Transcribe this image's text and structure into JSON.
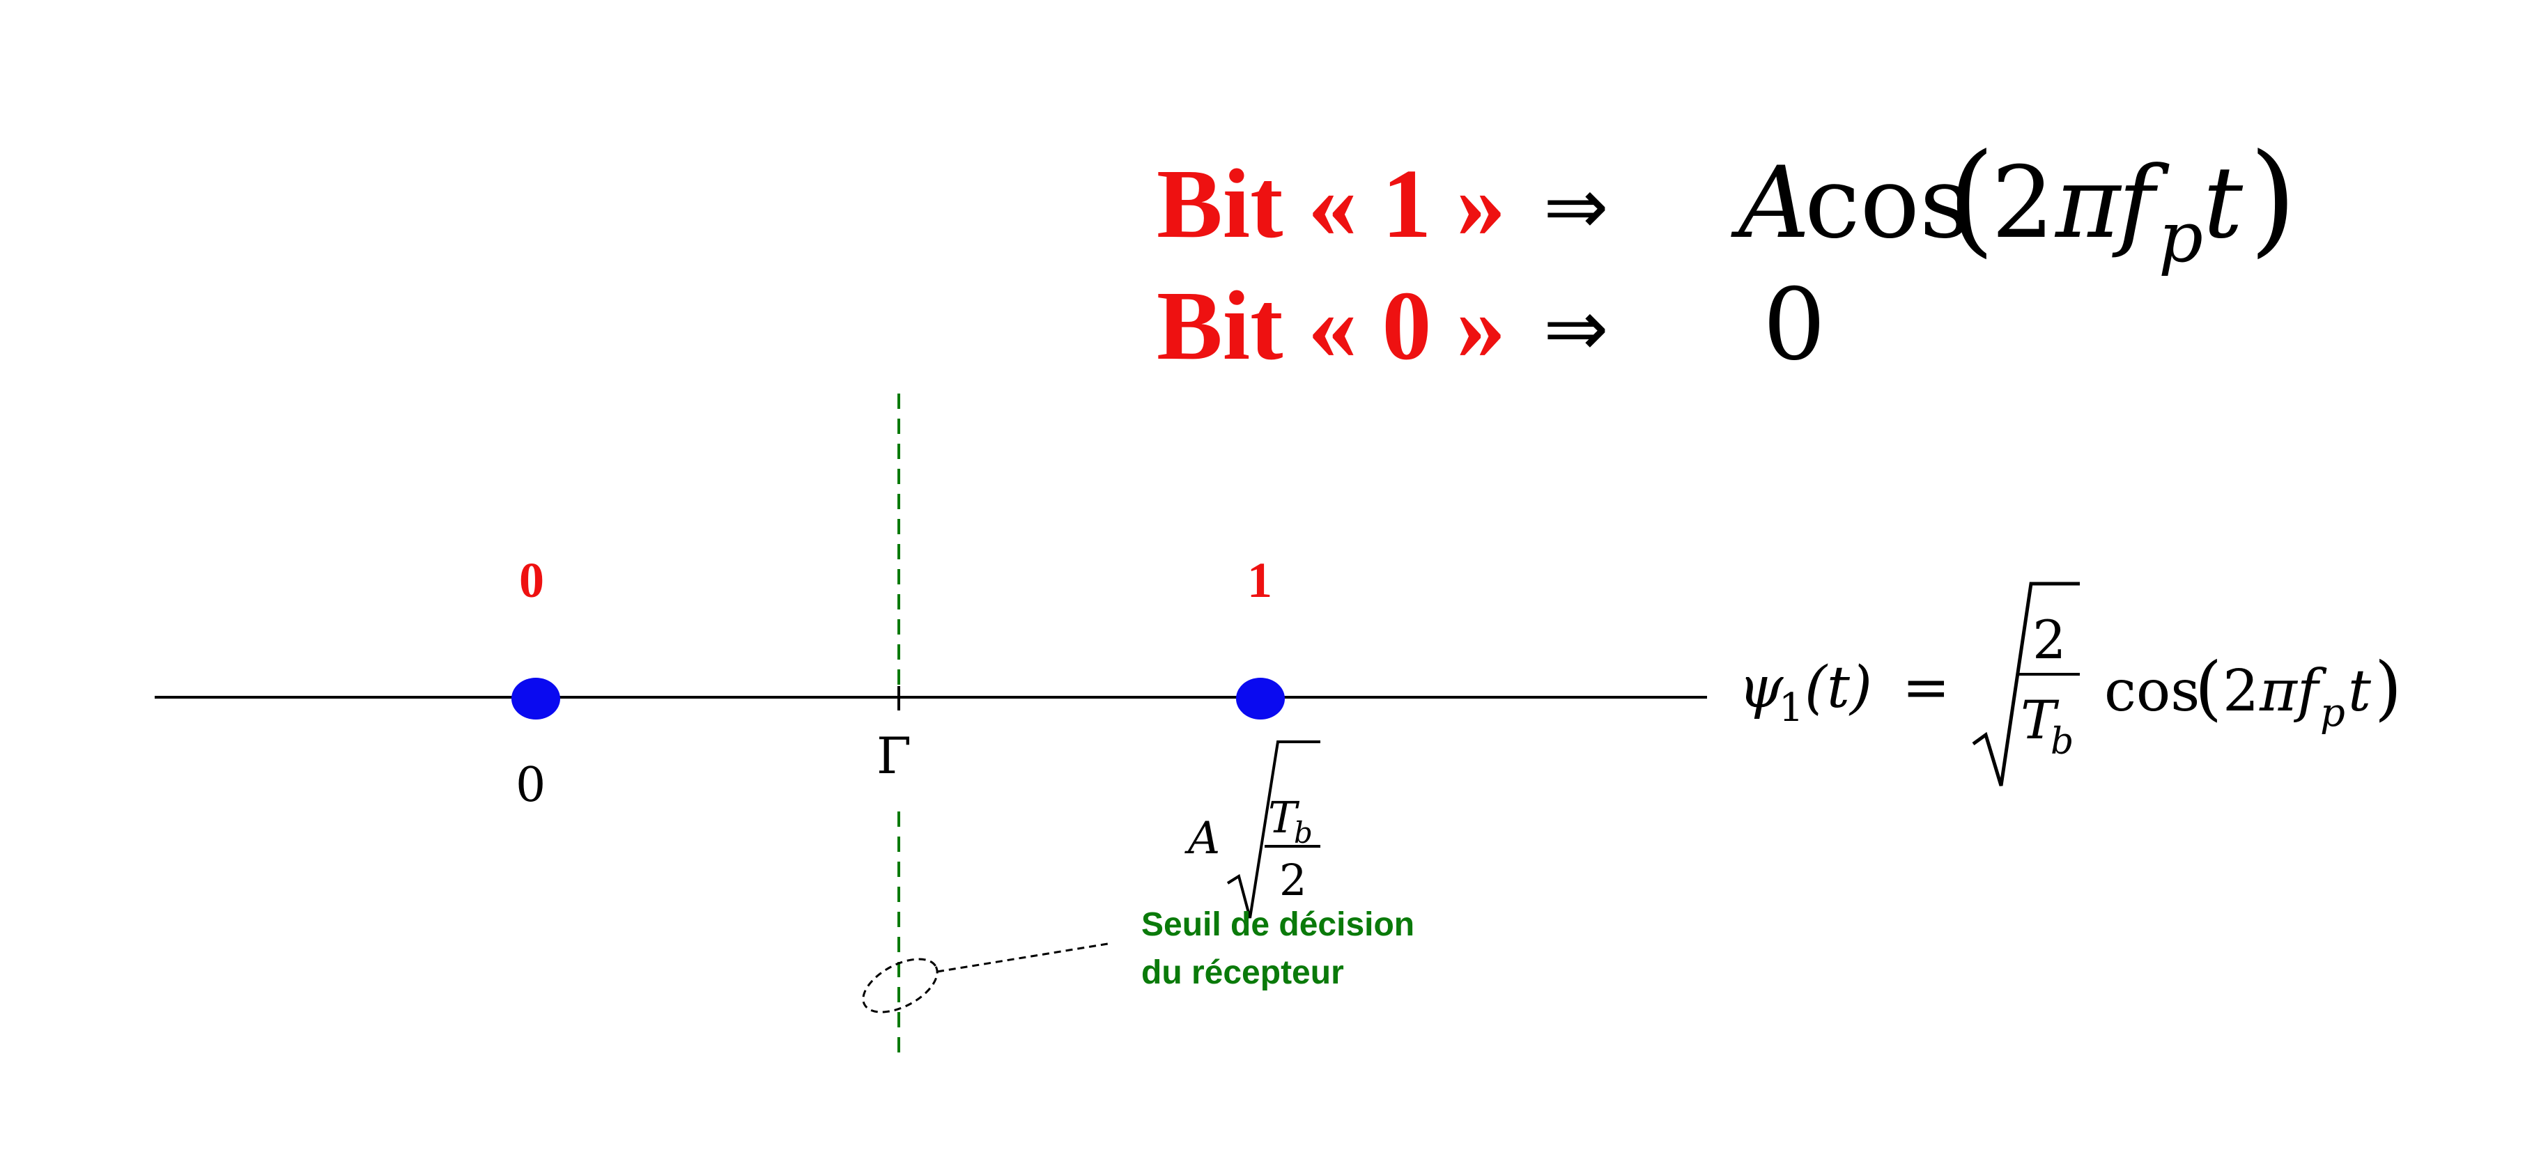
{
  "colors": {
    "accent_red": "#ee1111",
    "point_blue": "#0a0af0",
    "threshold_green": "#0a7a0a",
    "ink": "#000000"
  },
  "equations": {
    "bit1": {
      "label": "Bit « 1 »",
      "arrow": "⇒",
      "rhs": {
        "A": "A",
        "cos": "cos",
        "lparen": "(",
        "two": "2",
        "pi": "π",
        "f": "f",
        "p": "p",
        "t": "t",
        "rparen": ")"
      }
    },
    "bit0": {
      "label": "Bit « 0 »",
      "arrow": "⇒",
      "rhs": "0"
    }
  },
  "axis": {
    "points": [
      {
        "bit": "0",
        "value_label": "0"
      },
      {
        "bit": "1",
        "value_A": "A",
        "value_T": "T",
        "value_b": "b",
        "value_den": "2"
      }
    ],
    "threshold_label": "Γ",
    "basis": {
      "psi": "ψ",
      "sub": "1",
      "arg": "(t)",
      "eq": "=",
      "num": "2",
      "den_T": "T",
      "den_b": "b",
      "cos": "cos",
      "lparen": "(",
      "two": "2",
      "pi": "π",
      "f": "f",
      "p": "p",
      "t": "t",
      "rparen": ")"
    }
  },
  "annotation": {
    "line1": "Seuil de décision",
    "line2": "du récepteur"
  }
}
